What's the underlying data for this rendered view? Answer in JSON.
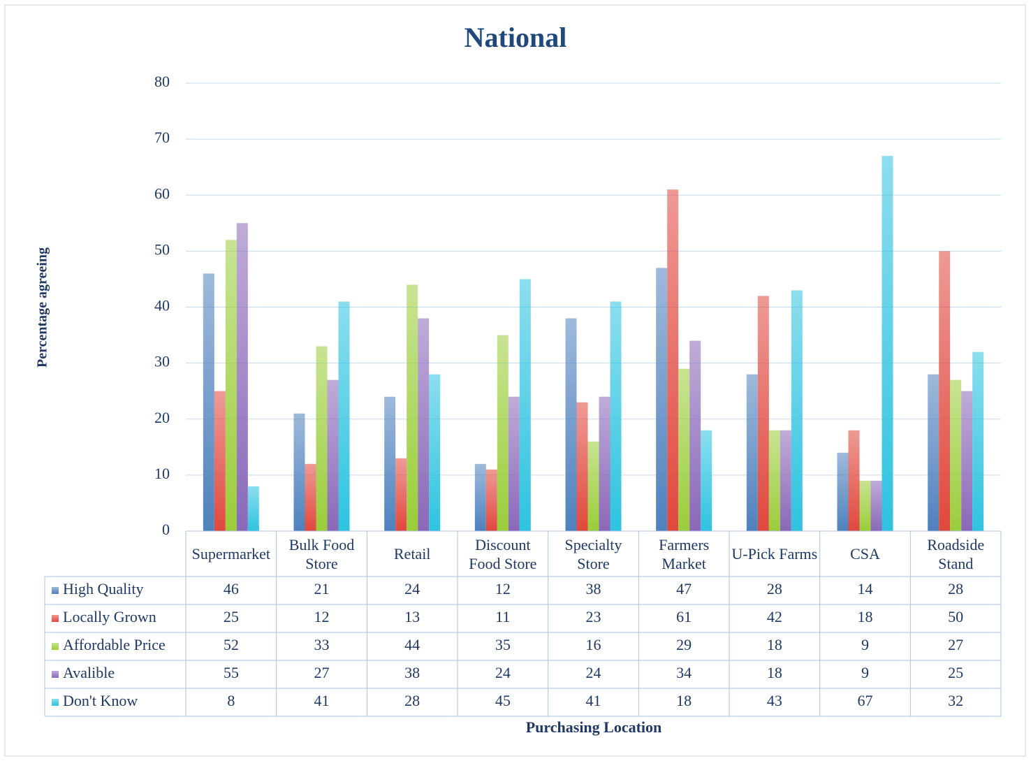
{
  "chart_data": {
    "type": "bar",
    "title": "National",
    "y_label": "Percentage agreeing",
    "x_label": "Purchasing Location",
    "categories": [
      "Supermarket",
      "Bulk Food Store",
      "Retail",
      "Discount Food Store",
      "Specialty Store",
      "Farmers Market",
      "U-Pick Farms",
      "CSA",
      "Roadside Stand"
    ],
    "series": [
      {
        "name": "High Quality",
        "color": "#4f81bd",
        "values": [
          46,
          21,
          24,
          12,
          38,
          47,
          28,
          14,
          28
        ]
      },
      {
        "name": "Locally Grown",
        "color": "#e0483e",
        "values": [
          25,
          12,
          13,
          11,
          23,
          61,
          42,
          18,
          50
        ]
      },
      {
        "name": "Affordable Price",
        "color": "#9bcd3a",
        "values": [
          52,
          33,
          44,
          35,
          16,
          29,
          18,
          9,
          27
        ]
      },
      {
        "name": "Avalible",
        "color": "#8a68b8",
        "values": [
          55,
          27,
          38,
          24,
          24,
          34,
          18,
          9,
          25
        ]
      },
      {
        "name": "Don't Know",
        "color": "#2ec3e0",
        "values": [
          8,
          41,
          28,
          45,
          41,
          18,
          43,
          67,
          32
        ]
      }
    ],
    "ylim": [
      0,
      80
    ],
    "yticks": [
      0,
      10,
      20,
      30,
      40,
      50,
      60,
      70,
      80
    ],
    "grid": true
  }
}
